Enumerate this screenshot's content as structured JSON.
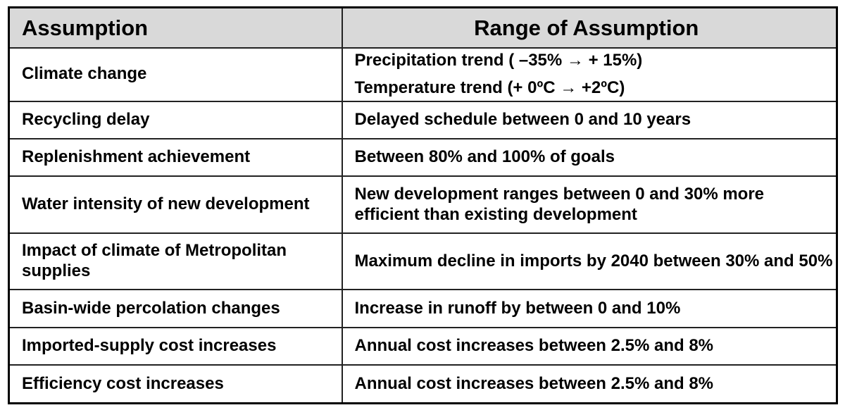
{
  "table": {
    "headers": [
      "Assumption",
      "Range of Assumption"
    ],
    "rows": [
      {
        "assumption": "Climate change",
        "range": [
          "Precipitation trend ( –35% → + 15%)",
          "Temperature trend (+ 0ºC → +2ºC)"
        ]
      },
      {
        "assumption": "Recycling delay",
        "range": [
          "Delayed schedule between 0 and 10 years"
        ]
      },
      {
        "assumption": "Replenishment achievement",
        "range": [
          "Between 80% and 100% of goals"
        ]
      },
      {
        "assumption": "Water intensity of new development",
        "range": [
          "New development ranges between 0 and 30% more efficient than existing development"
        ]
      },
      {
        "assumption": "Impact of climate of Metropolitan supplies",
        "range": [
          "Maximum decline in imports by 2040 between 30% and 50%"
        ]
      },
      {
        "assumption": "Basin-wide percolation changes",
        "range": [
          "Increase in runoff by between 0 and 10%"
        ]
      },
      {
        "assumption": "Imported-supply cost increases",
        "range": [
          "Annual cost increases between 2.5% and 8%"
        ]
      },
      {
        "assumption": "Efficiency cost increases",
        "range": [
          "Annual cost increases between 2.5% and 8%"
        ]
      }
    ]
  },
  "colors": {
    "header_bg": "#d9d9d9",
    "border": "#000000",
    "text": "#000000"
  }
}
